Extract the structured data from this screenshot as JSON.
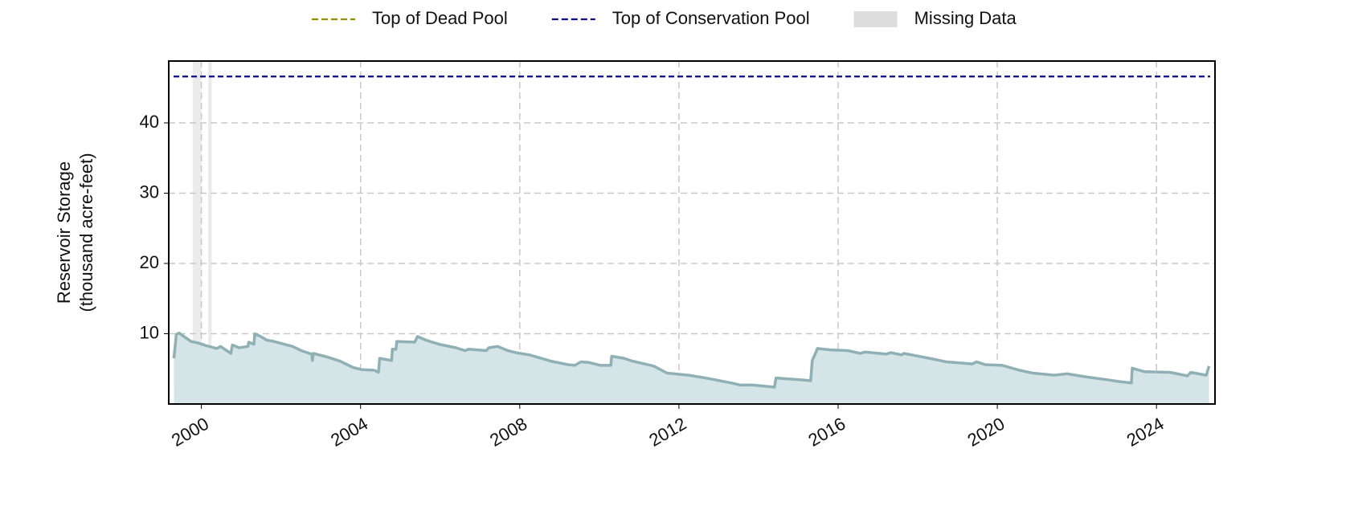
{
  "chart_data": {
    "type": "area",
    "ylabel": [
      "Reservoir Storage",
      "(thousand acre-feet)"
    ],
    "x": [
      1999.31,
      1999.37,
      1999.44,
      1999.59,
      1999.74,
      1999.91,
      2000.13,
      2000.39,
      2000.48,
      2000.74,
      2000.78,
      2000.95,
      2001.17,
      2001.19,
      2001.32,
      2001.34,
      2001.49,
      2001.64,
      2001.82,
      2002.08,
      2002.29,
      2002.51,
      2002.77,
      2002.79,
      2002.81,
      2003.16,
      2003.48,
      2003.81,
      2004.02,
      2004.35,
      2004.45,
      2004.48,
      2004.78,
      2004.8,
      2004.89,
      2004.91,
      2005.36,
      2005.43,
      2005.64,
      2005.97,
      2006.4,
      2006.62,
      2006.72,
      2007.16,
      2007.22,
      2007.44,
      2007.7,
      2007.91,
      2008.24,
      2008.78,
      2009.21,
      2009.38,
      2009.54,
      2009.75,
      2010.03,
      2010.29,
      2010.31,
      2010.62,
      2010.83,
      2011.37,
      2011.7,
      2012.24,
      2012.67,
      2013.32,
      2013.54,
      2013.86,
      2014.4,
      2014.44,
      2015.16,
      2015.31,
      2015.35,
      2015.43,
      2015.48,
      2015.81,
      2016.24,
      2016.56,
      2016.67,
      2017.21,
      2017.32,
      2017.6,
      2017.65,
      2018.29,
      2018.72,
      2019.37,
      2019.48,
      2019.7,
      2020.13,
      2020.56,
      2020.89,
      2021.43,
      2021.75,
      2022.18,
      2022.83,
      2023.05,
      2023.37,
      2023.39,
      2023.7,
      2024.35,
      2024.78,
      2024.86,
      2025.25,
      2025.32
    ],
    "values": [
      6.5,
      9.9,
      10.1,
      9.5,
      8.9,
      8.7,
      8.3,
      7.9,
      8.2,
      7.2,
      8.4,
      8.0,
      8.2,
      8.8,
      8.5,
      10.0,
      9.6,
      9.1,
      8.9,
      8.5,
      8.2,
      7.6,
      7.1,
      6.2,
      7.2,
      6.7,
      6.1,
      5.2,
      4.9,
      4.8,
      4.5,
      6.5,
      6.2,
      7.8,
      7.8,
      8.9,
      8.8,
      9.6,
      9.1,
      8.5,
      8.0,
      7.6,
      7.8,
      7.6,
      8.0,
      8.2,
      7.6,
      7.3,
      7.0,
      6.1,
      5.6,
      5.5,
      6.0,
      5.9,
      5.5,
      5.5,
      6.8,
      6.5,
      6.1,
      5.4,
      4.4,
      4.1,
      3.7,
      3.0,
      2.7,
      2.7,
      2.4,
      3.7,
      3.4,
      3.3,
      6.2,
      7.2,
      7.9,
      7.7,
      7.6,
      7.2,
      7.4,
      7.1,
      7.3,
      7.0,
      7.2,
      6.5,
      6.0,
      5.7,
      6.0,
      5.6,
      5.5,
      4.8,
      4.4,
      4.1,
      4.3,
      3.9,
      3.4,
      3.2,
      3.0,
      5.1,
      4.6,
      4.5,
      4.0,
      4.5,
      4.1,
      5.4
    ],
    "color": "#8fb0b5",
    "fill_color": "#d5e5e7",
    "xlim": [
      1999.18,
      2025.47
    ],
    "xticks": [
      2000,
      2004,
      2008,
      2012,
      2016,
      2020,
      2024
    ],
    "ylim": [
      0,
      48.8
    ],
    "yticks": [
      10,
      20,
      30,
      40
    ],
    "grid": true,
    "reference_lines": [
      {
        "name": "Top of Dead Pool",
        "color": "#9a8c00"
      },
      {
        "name": "Top of Conservation Pool",
        "color": "#0a0a8c",
        "value": 46.6
      }
    ],
    "missing_data": {
      "name": "Missing Data",
      "color": "#dddddd",
      "spans": [
        [
          1999.78,
          2000.0
        ],
        [
          2000.17,
          2000.26
        ]
      ]
    }
  }
}
